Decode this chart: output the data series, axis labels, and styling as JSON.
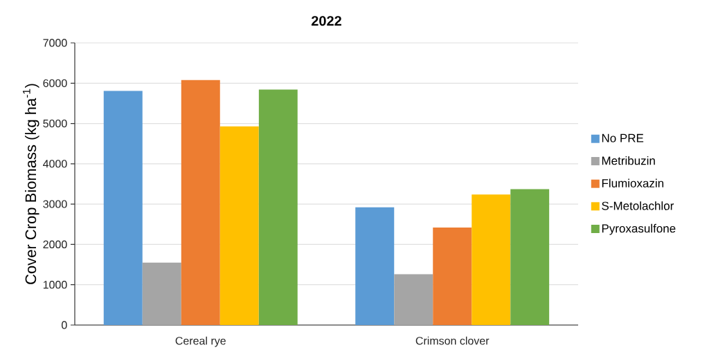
{
  "chart_data": {
    "type": "bar",
    "title": "2022",
    "ylabel": "Cover Crop Biomass (kg ha$^{-1}$)",
    "categories": [
      "Cereal rye",
      "Crimson clover"
    ],
    "series": [
      {
        "name": "No PRE",
        "color": "#5b9bd5",
        "values": [
          5810,
          2920
        ]
      },
      {
        "name": "Metribuzin",
        "color": "#a5a5a5",
        "values": [
          1550,
          1260
        ]
      },
      {
        "name": "Flumioxazin",
        "color": "#ed7d31",
        "values": [
          6080,
          2420
        ]
      },
      {
        "name": "S-Metolachlor",
        "color": "#ffc000",
        "values": [
          4930,
          3240
        ]
      },
      {
        "name": "Pyroxasulfone",
        "color": "#70ad47",
        "values": [
          5840,
          3370
        ]
      }
    ],
    "ylim": [
      0,
      7000
    ],
    "yticks": [
      0,
      1000,
      2000,
      3000,
      4000,
      5000,
      6000,
      7000
    ],
    "grid": "y",
    "legend": "right"
  }
}
